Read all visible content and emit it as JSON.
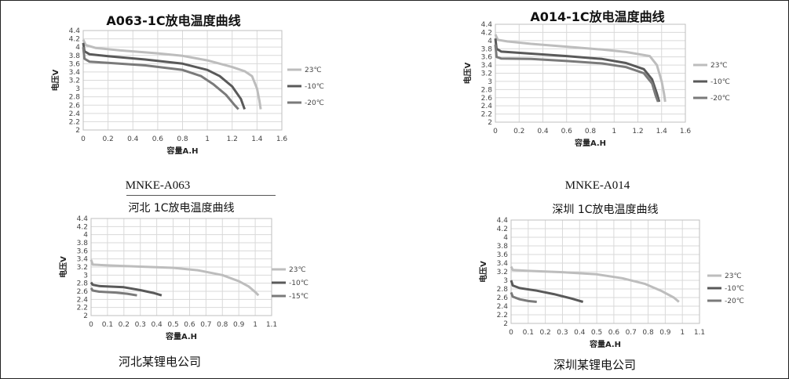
{
  "labels": {
    "model_a063": "MNKE-A063",
    "model_a014": "MNKE-A014",
    "company_hebei": "河北某锂电公司",
    "company_shenzhen": "深圳某锂电公司"
  },
  "charts": [
    {
      "title": "A063-1C放电温度曲线"
    },
    {
      "title": "A014-1C放电温度曲线"
    },
    {
      "title": "河北  1C放电温度曲线"
    },
    {
      "title": "深圳  1C放电温度曲线"
    }
  ],
  "chart_data": [
    {
      "type": "line",
      "title": "A063-1C放电温度曲线",
      "xlabel": "容量A.H",
      "ylabel": "电压V",
      "xlim": [
        0,
        1.6
      ],
      "ylim": [
        2,
        4.4
      ],
      "xticks": [
        "0",
        "0.2",
        "0.4",
        "0.6",
        "0.8",
        "1",
        "1.2",
        "1.4",
        "1.6"
      ],
      "yticks": [
        "2",
        "2.2",
        "2.4",
        "2.6",
        "2.8",
        "3",
        "3.2",
        "3.4",
        "3.6",
        "3.8",
        "4",
        "4.2",
        "4.4"
      ],
      "grid": true,
      "legend_position": "right",
      "series": [
        {
          "name": "23℃",
          "color": "#bdbdbd",
          "x": [
            0,
            0.02,
            0.1,
            0.3,
            0.6,
            0.8,
            1.0,
            1.2,
            1.3,
            1.36,
            1.4,
            1.42,
            1.43
          ],
          "y": [
            4.18,
            4.05,
            3.98,
            3.92,
            3.85,
            3.79,
            3.68,
            3.52,
            3.42,
            3.3,
            3.0,
            2.7,
            2.5
          ]
        },
        {
          "name": "-10℃",
          "color": "#595959",
          "x": [
            0,
            0.01,
            0.05,
            0.2,
            0.5,
            0.8,
            1.0,
            1.1,
            1.2,
            1.27,
            1.3
          ],
          "y": [
            4.1,
            3.9,
            3.83,
            3.78,
            3.7,
            3.6,
            3.45,
            3.3,
            3.05,
            2.75,
            2.5
          ]
        },
        {
          "name": "-20℃",
          "color": "#7a7a7a",
          "x": [
            0,
            0.01,
            0.05,
            0.2,
            0.5,
            0.8,
            0.95,
            1.05,
            1.15,
            1.22,
            1.25
          ],
          "y": [
            4.0,
            3.72,
            3.65,
            3.62,
            3.56,
            3.45,
            3.3,
            3.1,
            2.85,
            2.6,
            2.5
          ]
        }
      ]
    },
    {
      "type": "line",
      "title": "A014-1C放电温度曲线",
      "xlabel": "容量A.H",
      "ylabel": "电压V",
      "xlim": [
        0,
        1.6
      ],
      "ylim": [
        2,
        4.4
      ],
      "xticks": [
        "0",
        "0.2",
        "0.4",
        "0.6",
        "0.8",
        "1",
        "1.2",
        "1.4",
        "1.6"
      ],
      "yticks": [
        "2",
        "2.2",
        "2.4",
        "2.6",
        "2.8",
        "3",
        "3.2",
        "3.4",
        "3.6",
        "3.8",
        "4",
        "4.2",
        "4.4"
      ],
      "grid": true,
      "legend_position": "right",
      "series": [
        {
          "name": "23℃",
          "color": "#bdbdbd",
          "x": [
            0,
            0.02,
            0.1,
            0.3,
            0.6,
            0.9,
            1.1,
            1.3,
            1.36,
            1.4,
            1.42,
            1.43
          ],
          "y": [
            4.15,
            4.02,
            3.98,
            3.92,
            3.85,
            3.78,
            3.72,
            3.62,
            3.4,
            3.0,
            2.7,
            2.5
          ]
        },
        {
          "name": "-10℃",
          "color": "#595959",
          "x": [
            0,
            0.01,
            0.05,
            0.3,
            0.6,
            0.9,
            1.1,
            1.25,
            1.32,
            1.36,
            1.38
          ],
          "y": [
            4.05,
            3.8,
            3.73,
            3.68,
            3.62,
            3.55,
            3.45,
            3.3,
            3.05,
            2.7,
            2.5
          ]
        },
        {
          "name": "-20℃",
          "color": "#7a7a7a",
          "x": [
            0,
            0.01,
            0.05,
            0.3,
            0.6,
            0.9,
            1.1,
            1.25,
            1.32,
            1.35,
            1.37
          ],
          "y": [
            3.9,
            3.6,
            3.56,
            3.55,
            3.5,
            3.44,
            3.35,
            3.2,
            2.95,
            2.65,
            2.5
          ]
        }
      ]
    },
    {
      "type": "line",
      "title": "河北  1C放电温度曲线",
      "xlabel": "容量A.H",
      "ylabel": "电压V",
      "xlim": [
        0,
        1.1
      ],
      "ylim": [
        2,
        4.4
      ],
      "xticks": [
        "0",
        "0.1",
        "0.2",
        "0.3",
        "0.4",
        "0.5",
        "0.6",
        "0.7",
        "0.8",
        "0.9",
        "1",
        "1.1"
      ],
      "yticks": [
        "2",
        "2.2",
        "2.4",
        "2.6",
        "2.8",
        "3",
        "3.2",
        "3.4",
        "3.6",
        "3.8",
        "4",
        "4.2",
        "4.4"
      ],
      "grid": true,
      "legend_position": "right",
      "series": [
        {
          "name": "23℃",
          "color": "#bdbdbd",
          "x": [
            0,
            0.01,
            0.1,
            0.3,
            0.5,
            0.65,
            0.8,
            0.9,
            0.96,
            1.0,
            1.02
          ],
          "y": [
            3.38,
            3.26,
            3.24,
            3.21,
            3.18,
            3.12,
            3.0,
            2.85,
            2.72,
            2.58,
            2.5
          ]
        },
        {
          "name": "-10℃",
          "color": "#595959",
          "x": [
            0,
            0.01,
            0.05,
            0.2,
            0.3,
            0.38,
            0.43
          ],
          "y": [
            2.82,
            2.76,
            2.73,
            2.7,
            2.63,
            2.56,
            2.5
          ]
        },
        {
          "name": "-15℃",
          "color": "#7a7a7a",
          "x": [
            0,
            0.01,
            0.05,
            0.15,
            0.22,
            0.28
          ],
          "y": [
            2.68,
            2.62,
            2.59,
            2.57,
            2.54,
            2.5
          ]
        }
      ]
    },
    {
      "type": "line",
      "title": "深圳  1C放电温度曲线",
      "xlabel": "容量A.H",
      "ylabel": "电压V",
      "xlim": [
        0,
        1.1
      ],
      "ylim": [
        2,
        4.4
      ],
      "xticks": [
        "0",
        "0.1",
        "0.2",
        "0.3",
        "0.4",
        "0.5",
        "0.6",
        "0.7",
        "0.8",
        "0.9",
        "1",
        "1.1"
      ],
      "yticks": [
        "2",
        "2.2",
        "2.4",
        "2.6",
        "2.8",
        "3",
        "3.2",
        "3.4",
        "3.6",
        "3.8",
        "4",
        "4.2",
        "4.4"
      ],
      "grid": true,
      "legend_position": "right",
      "series": [
        {
          "name": "23℃",
          "color": "#bdbdbd",
          "x": [
            0,
            0.01,
            0.1,
            0.3,
            0.5,
            0.65,
            0.78,
            0.88,
            0.95,
            0.98
          ],
          "y": [
            3.32,
            3.24,
            3.22,
            3.19,
            3.14,
            3.05,
            2.92,
            2.75,
            2.6,
            2.5
          ]
        },
        {
          "name": "-10℃",
          "color": "#595959",
          "x": [
            0,
            0.01,
            0.05,
            0.15,
            0.25,
            0.35,
            0.42
          ],
          "y": [
            3.0,
            2.88,
            2.82,
            2.76,
            2.68,
            2.58,
            2.5
          ]
        },
        {
          "name": "-20℃",
          "color": "#7a7a7a",
          "x": [
            0,
            0.01,
            0.05,
            0.1,
            0.15
          ],
          "y": [
            2.72,
            2.62,
            2.56,
            2.52,
            2.5
          ]
        }
      ]
    }
  ]
}
